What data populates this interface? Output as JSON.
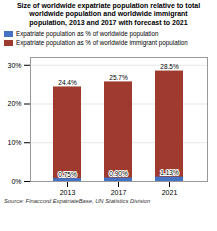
{
  "chart_data": {
    "type": "bar",
    "title": "Size of worldwide expatriate population relative to total\nworldwide population and worldwide immigrant\npopulation, 2013 and 2017 with forecast to 2021",
    "categories": [
      "2013",
      "2017",
      "2021"
    ],
    "series": [
      {
        "name": "Expatriate population as % of worldwide immigrant population",
        "color": "#9E3B2E",
        "values": [
          24.4,
          25.7,
          28.5
        ],
        "value_labels": [
          "24.4%",
          "25.7%",
          "28.5%"
        ]
      },
      {
        "name": "Expatriate population as % of worldwide population",
        "color": "#4472C4",
        "values": [
          0.75,
          0.9,
          1.13
        ],
        "value_labels": [
          "0.75%",
          "0.90%",
          "1.13%"
        ]
      }
    ],
    "ylim": [
      0,
      32
    ],
    "yticks": [
      {
        "value": 0,
        "label": "0%"
      },
      {
        "value": 10,
        "label": "10%"
      },
      {
        "value": 20,
        "label": "20%"
      },
      {
        "value": 30,
        "label": "30%"
      }
    ],
    "grid": true,
    "data_labels": true,
    "source": "Source: Finaccord ExpatriateBase, UN Statistics Division"
  }
}
